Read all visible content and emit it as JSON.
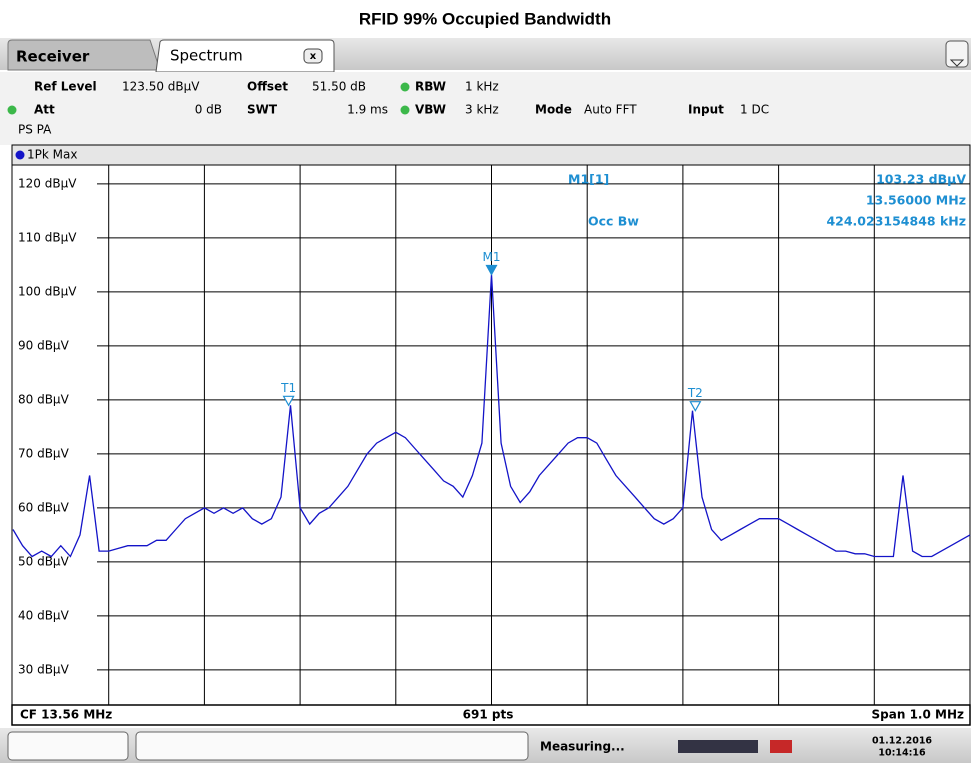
{
  "title": "RFID 99% Occupied Bandwidth",
  "tabs": [
    "Receiver",
    "Spectrum"
  ],
  "settings": {
    "ref_level": {
      "label": "Ref Level",
      "value": "123.50 dBµV"
    },
    "offset": {
      "label": "Offset",
      "value": "51.50 dB"
    },
    "rbw": {
      "label": "RBW",
      "value": "1 kHz"
    },
    "att": {
      "label": "Att",
      "value": "0 dB"
    },
    "swt": {
      "label": "SWT",
      "value": "1.9 ms"
    },
    "vbw": {
      "label": "VBW",
      "value": "3 kHz"
    },
    "mode": {
      "label": "Mode",
      "value": "Auto FFT"
    },
    "input": {
      "label": "Input",
      "value": "1 DC"
    },
    "ps": "PS PA"
  },
  "marker_table": {
    "name": "M1[1]",
    "level": "103.23 dBµV",
    "freq": "13.56000 MHz",
    "occ_label": "Occ Bw",
    "occ_value": "424.023154848 kHz"
  },
  "footer": {
    "cf": "CF 13.56 MHz",
    "pts": "691 pts",
    "span": "Span 1.0 MHz"
  },
  "status": {
    "state": "Measuring...",
    "date": "01.12.2016",
    "time": "10:14:16"
  },
  "chart_data": {
    "type": "line",
    "x": [
      13.06,
      13.07,
      13.08,
      13.09,
      13.1,
      13.11,
      13.12,
      13.13,
      13.14,
      13.15,
      13.16,
      13.17,
      13.18,
      13.19,
      13.2,
      13.21,
      13.22,
      13.23,
      13.24,
      13.25,
      13.26,
      13.27,
      13.28,
      13.29,
      13.3,
      13.31,
      13.32,
      13.33,
      13.34,
      13.35,
      13.36,
      13.37,
      13.38,
      13.39,
      13.4,
      13.41,
      13.42,
      13.43,
      13.44,
      13.45,
      13.46,
      13.47,
      13.48,
      13.49,
      13.5,
      13.51,
      13.52,
      13.53,
      13.54,
      13.55,
      13.56,
      13.57,
      13.58,
      13.59,
      13.6,
      13.61,
      13.62,
      13.63,
      13.64,
      13.65,
      13.66,
      13.67,
      13.68,
      13.69,
      13.7,
      13.71,
      13.72,
      13.73,
      13.74,
      13.75,
      13.76,
      13.77,
      13.78,
      13.79,
      13.8,
      13.81,
      13.82,
      13.83,
      13.84,
      13.85,
      13.86,
      13.87,
      13.88,
      13.89,
      13.9,
      13.91,
      13.92,
      13.93,
      13.94,
      13.95,
      13.96,
      13.97,
      13.98,
      13.99,
      14.0,
      14.01,
      14.02,
      14.03,
      14.04,
      14.05,
      14.06
    ],
    "series": [
      {
        "name": "1Pk Max",
        "color": "#1414c8",
        "values": [
          56,
          53,
          51,
          52,
          51,
          53,
          51,
          55,
          66,
          52,
          52,
          52.5,
          53,
          53,
          53,
          54,
          54,
          56,
          58,
          59,
          60,
          59,
          60,
          59,
          60,
          58,
          57,
          58,
          62,
          79,
          60,
          57,
          59,
          60,
          62,
          64,
          67,
          70,
          72,
          73,
          74,
          73,
          71,
          69,
          67,
          65,
          64,
          62,
          66,
          72,
          103.23,
          72,
          64,
          61,
          63,
          66,
          68,
          70,
          72,
          73,
          73,
          72,
          69,
          66,
          64,
          62,
          60,
          58,
          57,
          58,
          60,
          78,
          62,
          56,
          54,
          55,
          56,
          57,
          58,
          58,
          58,
          57,
          56,
          55,
          54,
          53,
          52,
          52,
          51.5,
          51.5,
          51,
          51,
          51,
          66,
          52,
          51,
          51,
          52,
          53,
          54,
          55
        ]
      }
    ],
    "xlim": [
      13.06,
      14.06
    ],
    "xticks": [
      13.16,
      13.26,
      13.36,
      13.46,
      13.56,
      13.66,
      13.76,
      13.86,
      13.96
    ],
    "ylim": [
      23.5,
      123.5
    ],
    "yticks": [
      {
        "value": 30,
        "label": "30 dBµV"
      },
      {
        "value": 40,
        "label": "40 dBµV"
      },
      {
        "value": 50,
        "label": "50 dBµV"
      },
      {
        "value": 60,
        "label": "60 dBµV"
      },
      {
        "value": 70,
        "label": "70 dBµV"
      },
      {
        "value": 80,
        "label": "80 dBµV"
      },
      {
        "value": 90,
        "label": "90 dBµV"
      },
      {
        "value": 100,
        "label": "100 dBµV"
      },
      {
        "value": 110,
        "label": "110 dBµV"
      },
      {
        "value": 120,
        "label": "120 dBµV"
      }
    ],
    "grid": true,
    "markers": [
      {
        "label": "M1",
        "x": 13.56,
        "y": 103.23,
        "filled": true
      },
      {
        "label": "T1",
        "x": 13.348,
        "y": 79,
        "filled": false
      },
      {
        "label": "T2",
        "x": 13.773,
        "y": 78,
        "filled": false
      }
    ],
    "marker_color": "#1e8fd2"
  }
}
